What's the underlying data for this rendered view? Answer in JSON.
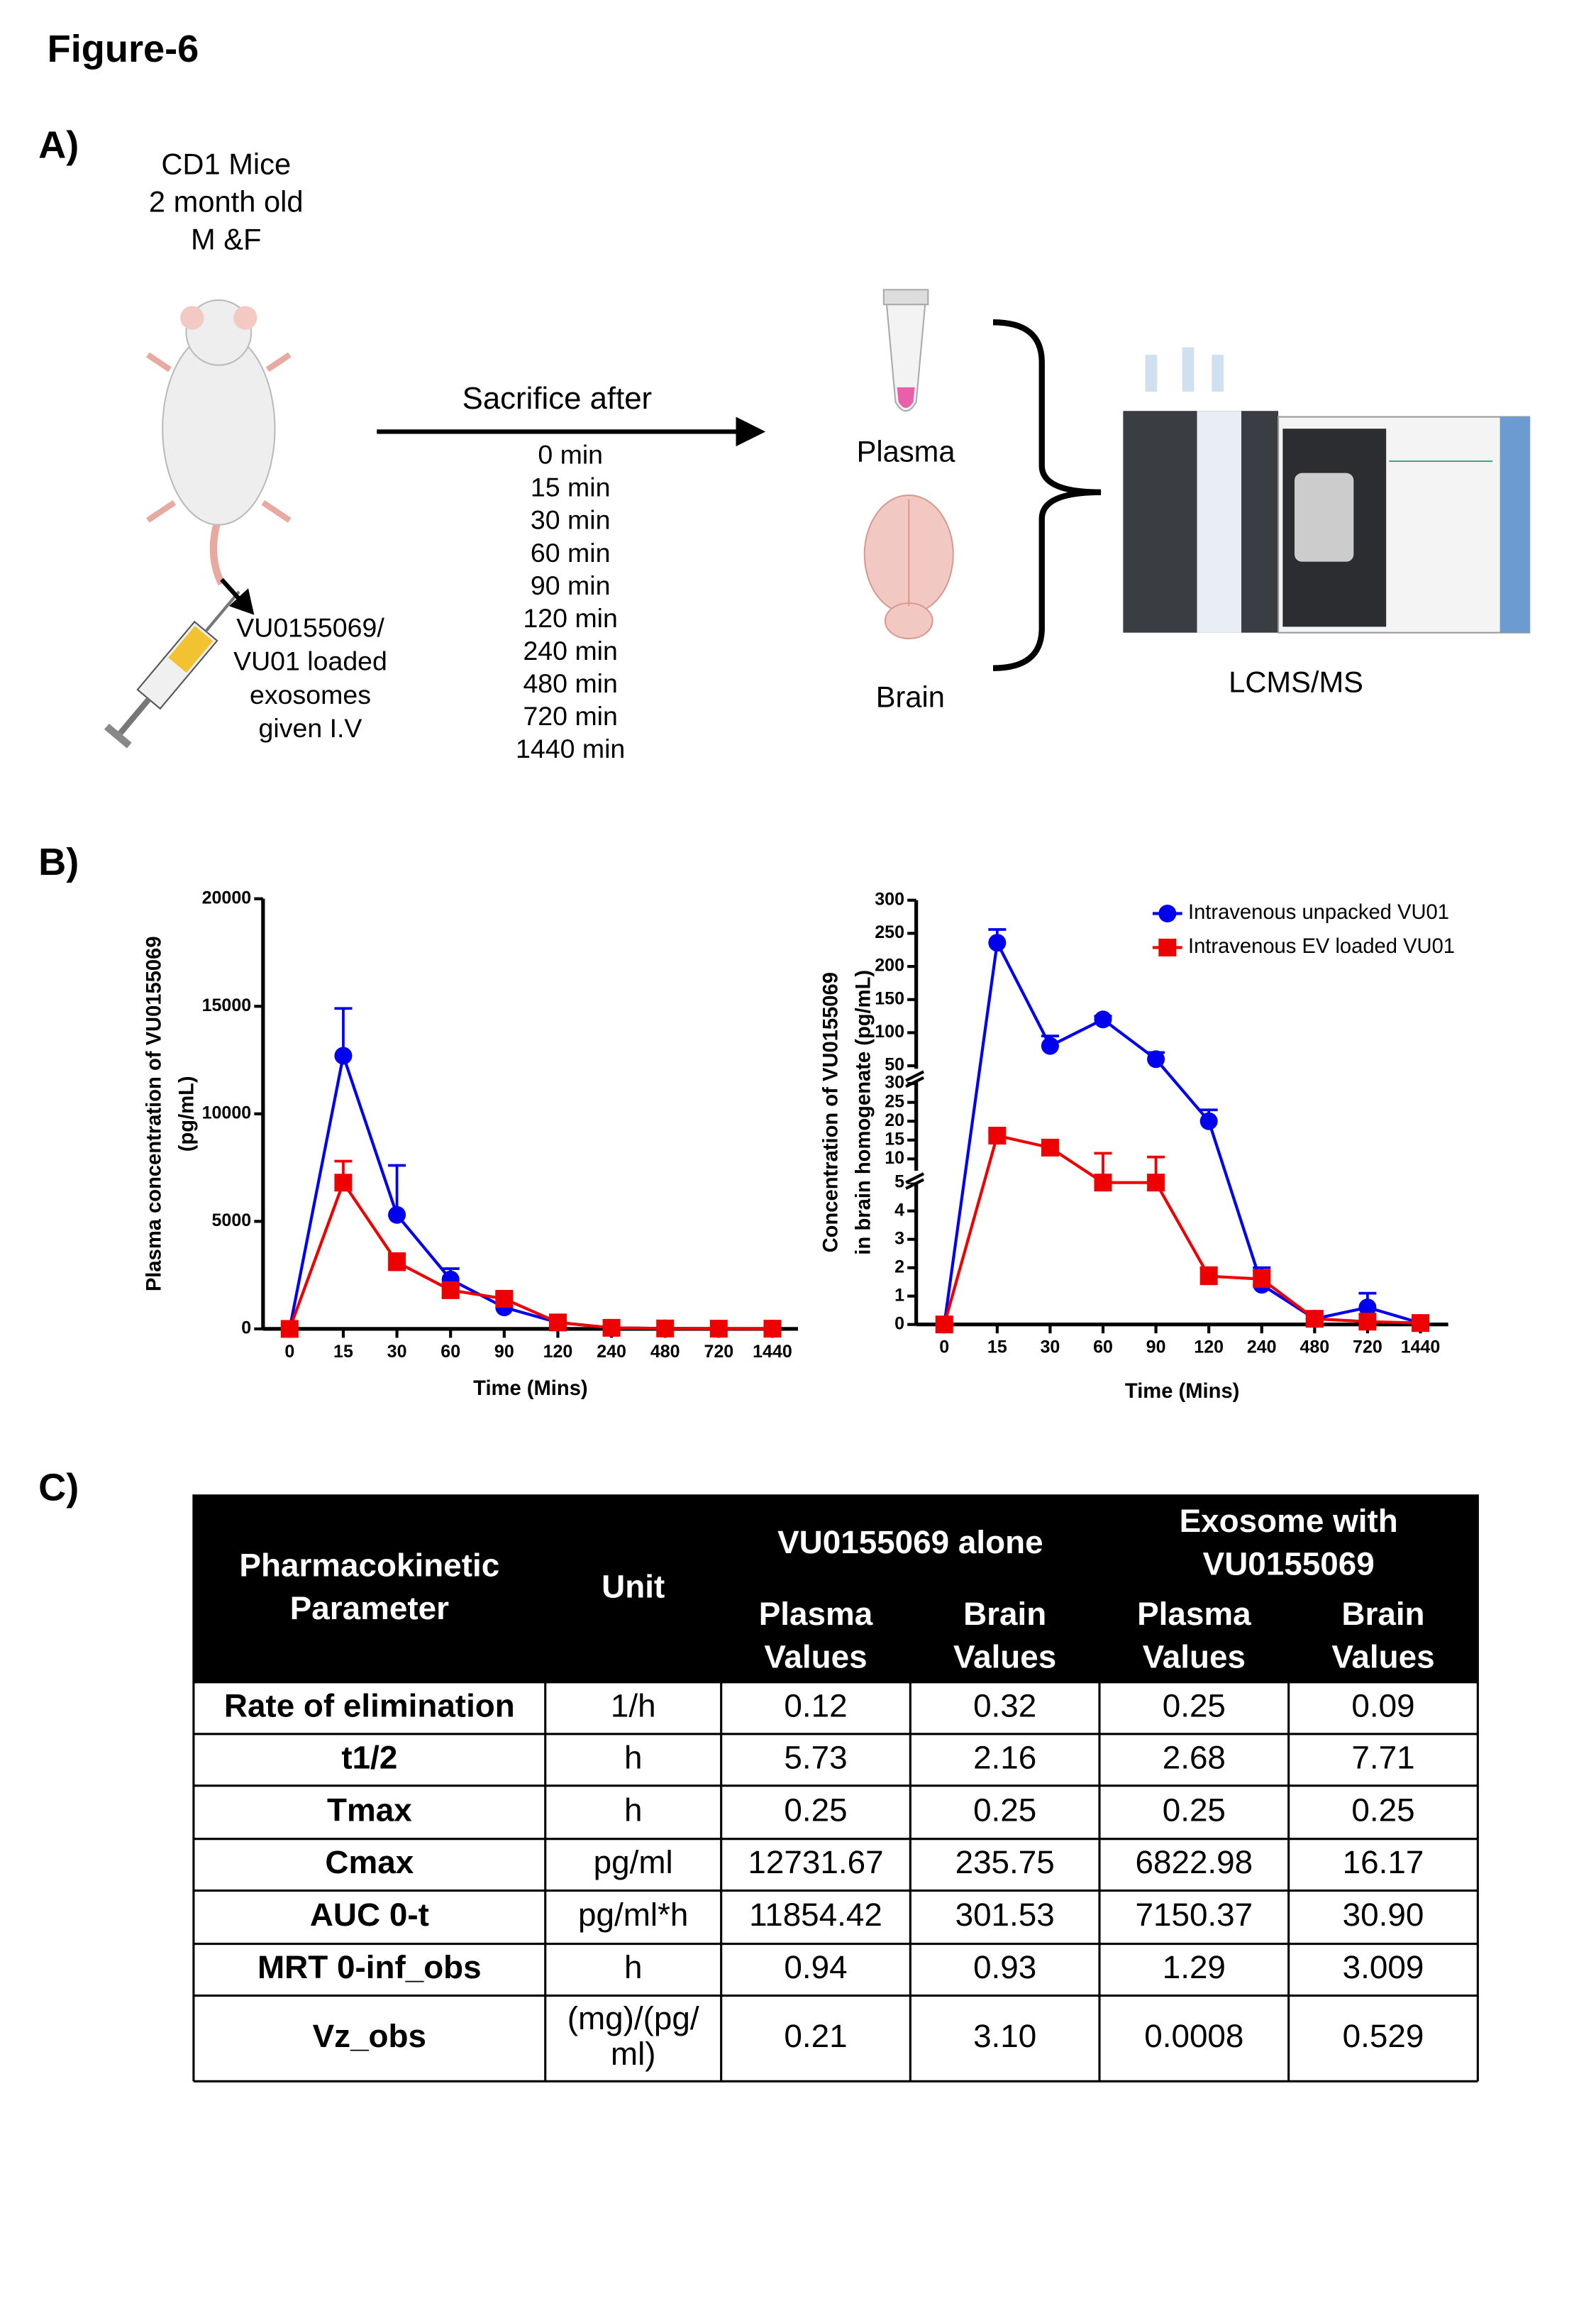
{
  "figure_title": "Figure-6",
  "panel_a": {
    "label": "A)",
    "subject": [
      "CD1 Mice",
      "2 month old",
      "M &F"
    ],
    "injection": [
      "VU0155069/",
      "VU01 loaded",
      "exosomes",
      "given I.V"
    ],
    "arrow_label": "Sacrifice after",
    "timepoints": [
      "0 min",
      "15 min",
      "30 min",
      "60 min",
      "90 min",
      "120 min",
      "240 min",
      "480 min",
      "720 min",
      "1440 min"
    ],
    "samples": [
      "Plasma",
      "Brain"
    ],
    "instrument": "LCMS/MS"
  },
  "panel_b": {
    "label": "B)"
  },
  "chart_data": [
    {
      "type": "line",
      "ylabel": [
        "Plasma concentration of VU0155069",
        "(pg/mL)"
      ],
      "xlabel": "Time (Mins)",
      "categories": [
        "0",
        "15",
        "30",
        "60",
        "90",
        "120",
        "240",
        "480",
        "720",
        "1440"
      ],
      "ylim": [
        0,
        20000
      ],
      "yticks": [
        0,
        5000,
        10000,
        15000,
        20000
      ],
      "series": [
        {
          "name": "Intravenous unpacked VU01",
          "color": "#0000ee",
          "marker": "circle",
          "values": [
            0,
            12700,
            5300,
            2300,
            1000,
            300,
            50,
            20,
            10,
            10
          ],
          "errors": [
            0,
            2200,
            2300,
            500,
            200,
            100,
            0,
            0,
            0,
            0
          ]
        },
        {
          "name": "Intravenous EV loaded VU01",
          "color": "#ee0000",
          "marker": "square",
          "values": [
            0,
            6800,
            3100,
            1800,
            1400,
            300,
            50,
            20,
            10,
            10
          ],
          "errors": [
            0,
            1000,
            400,
            200,
            200,
            50,
            0,
            0,
            0,
            0
          ]
        }
      ]
    },
    {
      "type": "line",
      "ylabel": [
        "Concentration of VU0155069",
        "in brain homogenate (pg/mL)"
      ],
      "xlabel": "Time (Mins)",
      "categories": [
        "0",
        "15",
        "30",
        "60",
        "90",
        "120",
        "240",
        "480",
        "720",
        "1440"
      ],
      "ysegments": [
        {
          "ylim": [
            0,
            5
          ],
          "yticks": [
            0,
            1,
            2,
            3,
            4,
            5
          ]
        },
        {
          "ylim": [
            10,
            30
          ],
          "yticks": [
            10,
            15,
            20,
            25,
            30
          ]
        },
        {
          "ylim": [
            50,
            300
          ],
          "yticks": [
            50,
            100,
            150,
            200,
            250,
            300
          ]
        }
      ],
      "legend": "upper right",
      "series": [
        {
          "name": "Intravenous unpacked VU01",
          "color": "#0000ee",
          "marker": "circle",
          "values": [
            0,
            235.75,
            80,
            120,
            60,
            20,
            1.4,
            0.2,
            0.6,
            0.05
          ],
          "errors": [
            0,
            20,
            15,
            5,
            10,
            3,
            0.6,
            0,
            0.5,
            0
          ]
        },
        {
          "name": "Intravenous EV loaded VU01",
          "color": "#ee0000",
          "marker": "square",
          "values": [
            0,
            16.17,
            13,
            9.5,
            9.5,
            1.7,
            1.6,
            0.2,
            0.1,
            0.05
          ],
          "errors": [
            0,
            1,
            1,
            2,
            1,
            0.3,
            0.3,
            0,
            0,
            0
          ]
        }
      ]
    }
  ],
  "panel_c": {
    "label": "C)",
    "table": {
      "header": {
        "parameter": [
          "Pharmacokinetic",
          "Parameter"
        ],
        "unit": [
          "Unit"
        ],
        "groups": [
          [
            "VU0155069 alone"
          ],
          [
            "Exosome with",
            "VU0155069"
          ]
        ],
        "subheaders": [
          [
            "Plasma",
            "Values"
          ],
          [
            "Brain",
            "Values"
          ],
          [
            "Plasma",
            "Values"
          ],
          [
            "Brain",
            "Values"
          ]
        ]
      },
      "rows": [
        [
          "Rate of elimination",
          "1/h",
          "0.12",
          "0.32",
          "0.25",
          "0.09"
        ],
        [
          "t1/2",
          "h",
          "5.73",
          "2.16",
          "2.68",
          "7.71"
        ],
        [
          "Tmax",
          "h",
          "0.25",
          "0.25",
          "0.25",
          "0.25"
        ],
        [
          "Cmax",
          "pg/ml",
          "12731.67",
          "235.75",
          "6822.98",
          "16.17"
        ],
        [
          "AUC 0-t",
          "pg/ml*h",
          "11854.42",
          "301.53",
          "7150.37",
          "30.90"
        ],
        [
          "MRT 0-inf_obs",
          "h",
          "0.94",
          "0.93",
          "1.29",
          "3.009"
        ],
        [
          "Vz_obs",
          [
            "(mg)/(pg/",
            "ml)"
          ],
          "0.21",
          "3.10",
          "0.0008",
          "0.529"
        ]
      ]
    }
  }
}
